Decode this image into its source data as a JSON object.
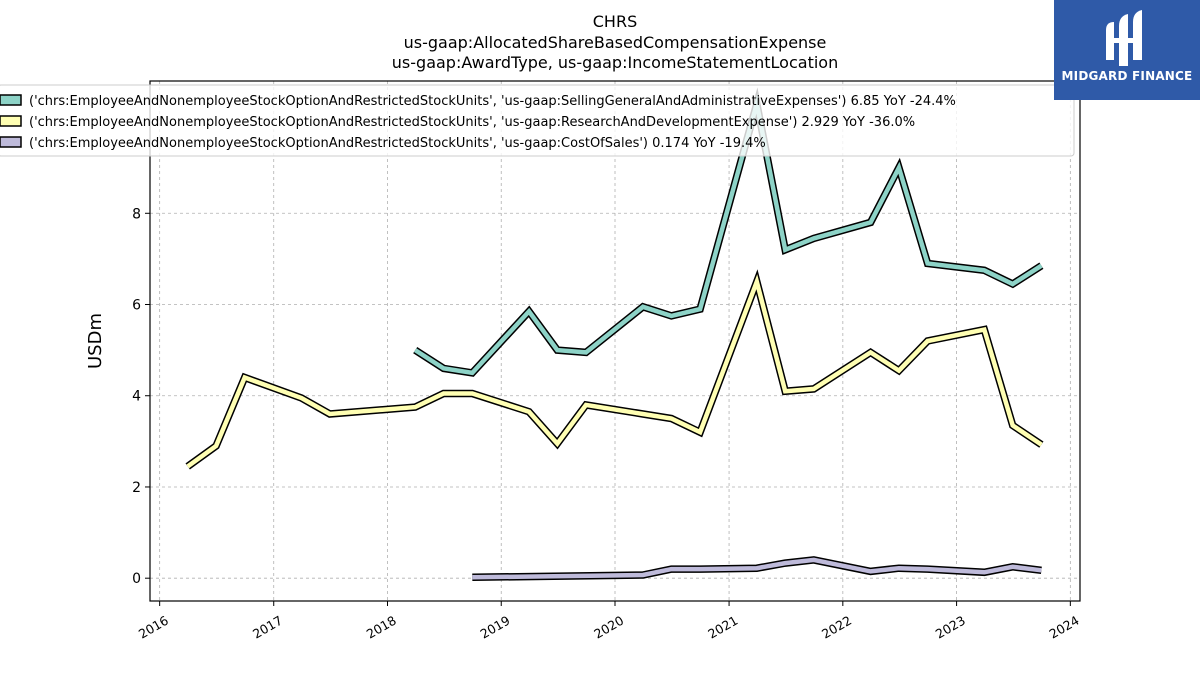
{
  "chart_data": {
    "type": "line",
    "title_lines": [
      "CHRS",
      "us-gaap:AllocatedShareBasedCompensationExpense",
      "us-gaap:AwardType, us-gaap:IncomeStatementLocation"
    ],
    "ylabel": "USDm",
    "xlabel": "",
    "xlim": [
      "2015-12-01",
      "2024-02-01"
    ],
    "ylim": [
      -0.5,
      10.9
    ],
    "x_ticks": [
      "2016",
      "2017",
      "2018",
      "2019",
      "2020",
      "2021",
      "2022",
      "2023",
      "2024"
    ],
    "y_ticks": [
      0,
      2,
      4,
      6,
      8
    ],
    "grid": true,
    "legend_position": "top-left",
    "series": [
      {
        "name": "('chrs:EmployeeAndNonemployeeStockOptionAndRestrictedStockUnits', 'us-gaap:SellingGeneralAndAdministrativeExpenses') 6.85 YoY -24.4%",
        "color": "#8dd3c7",
        "x": [
          "2018-03-31",
          "2018-06-30",
          "2018-09-30",
          "2019-03-31",
          "2019-06-30",
          "2019-09-30",
          "2020-03-31",
          "2020-06-30",
          "2020-09-30",
          "2021-03-31",
          "2021-06-30",
          "2021-09-30",
          "2022-03-31",
          "2022-06-30",
          "2022-09-30",
          "2023-03-31",
          "2023-06-30",
          "2023-09-30"
        ],
        "y": [
          5.0,
          4.6,
          4.5,
          5.85,
          5.0,
          4.95,
          5.95,
          5.75,
          5.9,
          10.4,
          7.2,
          7.45,
          7.8,
          9.0,
          6.9,
          6.75,
          6.45,
          6.85
        ]
      },
      {
        "name": "('chrs:EmployeeAndNonemployeeStockOptionAndRestrictedStockUnits', 'us-gaap:ResearchAndDevelopmentExpense') 2.929 YoY -36.0%",
        "color": "#ffffb3",
        "x": [
          "2016-03-31",
          "2016-06-30",
          "2016-09-30",
          "2017-03-31",
          "2017-06-30",
          "2018-03-31",
          "2018-06-30",
          "2018-09-30",
          "2019-03-31",
          "2019-06-30",
          "2019-09-30",
          "2020-03-31",
          "2020-06-30",
          "2020-09-30",
          "2021-03-31",
          "2021-06-30",
          "2021-09-30",
          "2022-03-31",
          "2022-06-30",
          "2022-09-30",
          "2023-03-31",
          "2023-06-30",
          "2023-09-30"
        ],
        "y": [
          2.45,
          2.9,
          4.4,
          3.95,
          3.6,
          3.75,
          4.05,
          4.05,
          3.65,
          2.95,
          3.8,
          3.6,
          3.5,
          3.2,
          6.5,
          4.1,
          4.15,
          4.95,
          4.55,
          5.2,
          5.45,
          3.35,
          2.929
        ]
      },
      {
        "name": "('chrs:EmployeeAndNonemployeeStockOptionAndRestrictedStockUnits', 'us-gaap:CostOfSales') 0.174 YoY -19.4%",
        "color": "#bebada",
        "x": [
          "2018-09-30",
          "2020-03-31",
          "2020-06-30",
          "2020-09-30",
          "2021-03-31",
          "2021-06-30",
          "2021-09-30",
          "2022-03-31",
          "2022-06-30",
          "2022-09-30",
          "2023-03-31",
          "2023-06-30",
          "2023-09-30"
        ],
        "y": [
          0.02,
          0.07,
          0.2,
          0.2,
          0.22,
          0.33,
          0.4,
          0.15,
          0.22,
          0.2,
          0.13,
          0.25,
          0.174
        ]
      }
    ]
  },
  "logo": {
    "text": "MIDGARD FINANCE",
    "color": "#2f5aa8"
  }
}
